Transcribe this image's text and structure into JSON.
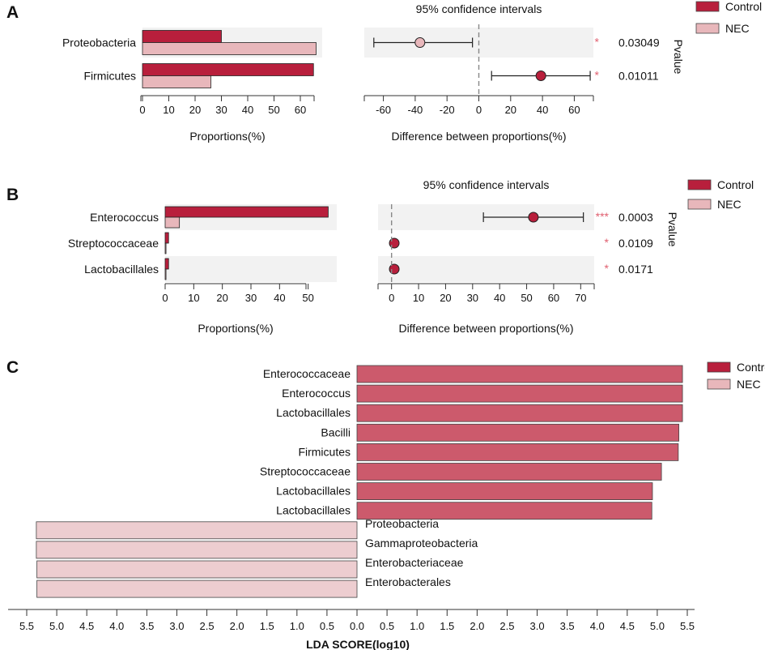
{
  "legend": {
    "control": "Control",
    "nec": "NEC"
  },
  "colors": {
    "control": "#b81f3c",
    "nec": "#e8b7bb",
    "lda_control": "#cc5a6c",
    "lda_nec": "#edcdd0",
    "band": "#f2f2f2",
    "star": "#e06070"
  },
  "chart_data": [
    {
      "type": "bar",
      "panel": "A",
      "title": "95% confidence intervals",
      "categories": [
        "Proteobacteria",
        "Firmicutes"
      ],
      "series": [
        {
          "name": "Control",
          "values": [
            30,
            65
          ]
        },
        {
          "name": "NEC",
          "values": [
            66,
            26
          ]
        }
      ],
      "xlabel": "Proportions(%)",
      "xlim": [
        0,
        68
      ],
      "xticks": [
        "0",
        "10",
        "20",
        "30",
        "40",
        "50",
        "60"
      ],
      "xtick_values": [
        0,
        10,
        20,
        30,
        40,
        50,
        60
      ],
      "ci": {
        "xlabel": "Difference between proportions(%)",
        "xlim": [
          -72,
          72
        ],
        "xticks": [
          "-60",
          "-40",
          "-20",
          "0",
          "20",
          "40",
          "60"
        ],
        "xtick_values": [
          -60,
          -40,
          -20,
          0,
          20,
          40,
          60
        ],
        "estimates": [
          -37,
          39
        ],
        "lower": [
          -66,
          8
        ],
        "upper": [
          -4,
          70
        ],
        "group": [
          "NEC",
          "Control"
        ]
      },
      "pvalue_label": "Pvalue",
      "pvalues": [
        "0.03049",
        "0.01011"
      ],
      "stars": [
        "*",
        "*"
      ]
    },
    {
      "type": "bar",
      "panel": "B",
      "title": "95% confidence intervals",
      "categories": [
        "Enterococcus",
        "Streptococcaceae",
        "Lactobacillales"
      ],
      "series": [
        {
          "name": "Control",
          "values": [
            57,
            1.2,
            1.2
          ]
        },
        {
          "name": "NEC",
          "values": [
            5,
            0.3,
            0.3
          ]
        }
      ],
      "xlabel": "Proportions(%)",
      "xlim": [
        0,
        60
      ],
      "xticks": [
        "0",
        "10",
        "20",
        "30",
        "40",
        "50"
      ],
      "xtick_values": [
        0,
        10,
        20,
        30,
        40,
        50
      ],
      "ci": {
        "xlabel": "Difference between proportions(%)",
        "xlim": [
          -5,
          75
        ],
        "xticks": [
          "0",
          "10",
          "20",
          "30",
          "40",
          "50",
          "60",
          "70"
        ],
        "xtick_values": [
          0,
          10,
          20,
          30,
          40,
          50,
          60,
          70
        ],
        "estimates": [
          52.5,
          1,
          1
        ],
        "lower": [
          34,
          0.5,
          0.5
        ],
        "upper": [
          71,
          1.5,
          1.5
        ],
        "group": [
          "Control",
          "Control",
          "Control"
        ]
      },
      "pvalue_label": "Pvalue",
      "pvalues": [
        "0.0003",
        "0.0109",
        "0.0171"
      ],
      "stars": [
        "***",
        "*",
        "*"
      ]
    },
    {
      "type": "bar",
      "panel": "C",
      "orientation": "horizontal-diverging",
      "categories": [
        "Enterococcaceae",
        "Enterococcus",
        "Lactobacillales",
        "Bacilli ",
        "Firmicutes",
        "Streptococcaceae",
        "Lactobacillales",
        "Lactobacillales",
        "Proteobacteria",
        "Gammaproteobacteria",
        "Enterobacteriaceae",
        "Enterobacterales"
      ],
      "values": [
        5.42,
        5.42,
        5.42,
        5.36,
        5.35,
        5.07,
        4.92,
        4.91,
        -5.34,
        -5.34,
        -5.33,
        -5.33
      ],
      "groups": [
        "Control",
        "Control",
        "Control",
        "Control",
        "Control",
        "Control",
        "Control",
        "Control",
        "NEC",
        "NEC",
        "NEC",
        "NEC"
      ],
      "xlabel": "LDA SCORE(log10)",
      "xlim": [
        -5.5,
        5.5
      ],
      "xticks": [
        "5.5",
        "5.0",
        "4.5",
        "4.0",
        "3.5",
        "3.0",
        "2.5",
        "2.0",
        "1.5",
        "1.0",
        "0.5",
        "0.0",
        "0.5",
        "1.0",
        "1.5",
        "2.0",
        "2.5",
        "3.0",
        "3.5",
        "4.0",
        "4.5",
        "5.0",
        "5.5"
      ],
      "xtick_values": [
        -5.5,
        -5.0,
        -4.5,
        -4.0,
        -3.5,
        -3.0,
        -2.5,
        -2.0,
        -1.5,
        -1.0,
        -0.5,
        0.0,
        0.5,
        1.0,
        1.5,
        2.0,
        2.5,
        3.0,
        3.5,
        4.0,
        4.5,
        5.0,
        5.5
      ]
    }
  ]
}
